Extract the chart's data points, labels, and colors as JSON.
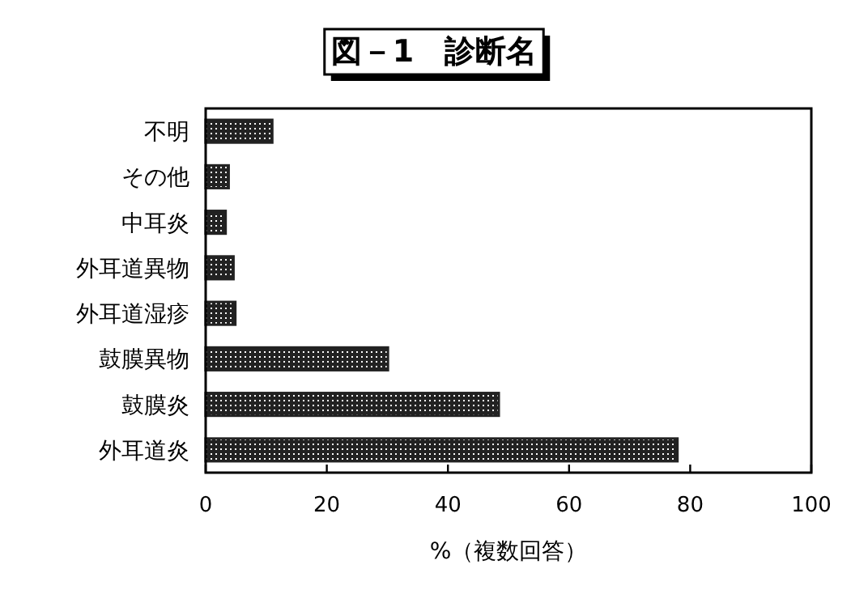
{
  "chart_data": {
    "type": "bar",
    "orientation": "horizontal",
    "title": "図－1　診断名",
    "xlabel": "%（複数回答）",
    "categories": [
      "不明",
      "その他",
      "中耳炎",
      "外耳道異物",
      "外耳道湿疹",
      "鼓膜異物",
      "鼓膜炎",
      "外耳道炎"
    ],
    "values": [
      11,
      3.8,
      3.3,
      4.6,
      4.9,
      30.1,
      48.4,
      77.9
    ],
    "color": "#222222",
    "xlim": [
      0,
      100
    ],
    "xticks": [
      0,
      20,
      40,
      60,
      80,
      100
    ],
    "grid": false
  }
}
